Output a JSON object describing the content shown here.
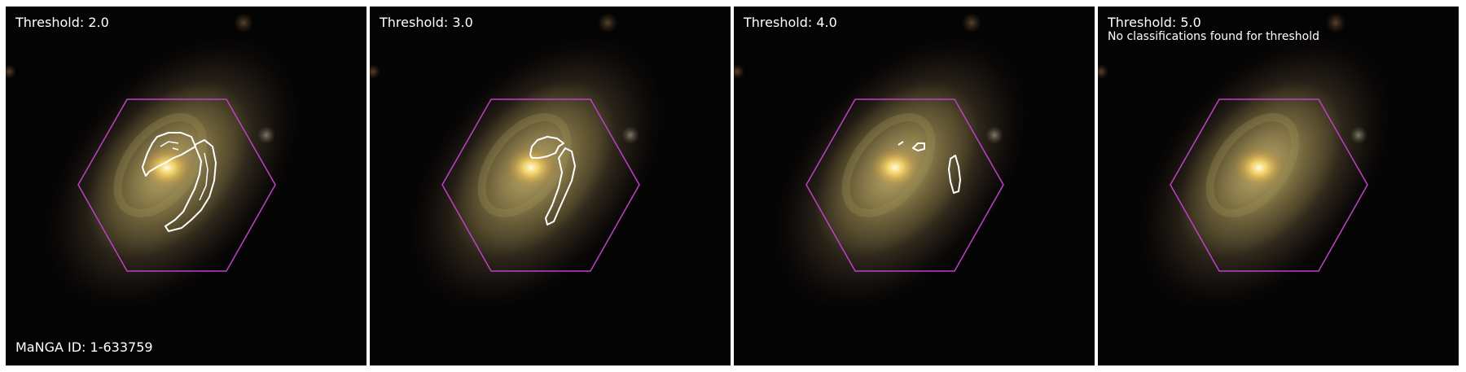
{
  "panels": [
    {
      "threshold_label": "Threshold: 2.0"
    },
    {
      "threshold_label": "Threshold: 3.0"
    },
    {
      "threshold_label": "Threshold: 4.0"
    },
    {
      "threshold_label": "Threshold: 5.0",
      "note": "No classifications found for threshold"
    }
  ],
  "manga_id_label": "MaNGA ID: 1-633759",
  "colors": {
    "hexagon": "#c040c8",
    "contour": "#ffffff",
    "text": "#ffffff",
    "background": "#050404"
  }
}
